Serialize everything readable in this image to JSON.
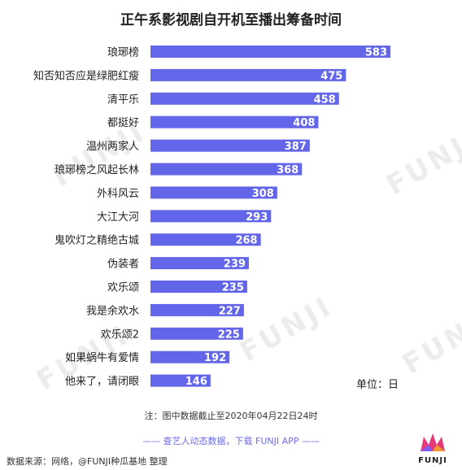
{
  "chart_data": {
    "type": "bar",
    "orientation": "horizontal",
    "title": "正午系影视剧自开机至播出筹备时间",
    "categories": [
      "琅琊榜",
      "知否知否应是绿肥红瘦",
      "清平乐",
      "都挺好",
      "温州两家人",
      "琅琊榜之风起长林",
      "外科风云",
      "大江大河",
      "鬼吹灯之精绝古城",
      "伪装者",
      "欢乐颂",
      "我是余欢水",
      "欢乐颂2",
      "如果蜗牛有爱情",
      "他来了，请闭眼"
    ],
    "values": [
      583,
      475,
      458,
      408,
      387,
      368,
      308,
      293,
      268,
      239,
      235,
      227,
      225,
      192,
      146
    ],
    "xlim": [
      0,
      583
    ],
    "bar_color": "#6366e8",
    "label_color": "#ffffff",
    "unit": "单位：日",
    "grid": false,
    "legend": "none"
  },
  "note": "注：图中数据截止至2020年04月22日24时",
  "promo": "—— 查艺人动态数据，下载 FUNJI APP ——",
  "source": "数据来源：网络，@FUNJI种瓜基地 整理",
  "watermark": "FUNJI",
  "logo_text": "FUNJI",
  "colors": {
    "accent": "#6366e8",
    "promo": "#6a6aee"
  }
}
